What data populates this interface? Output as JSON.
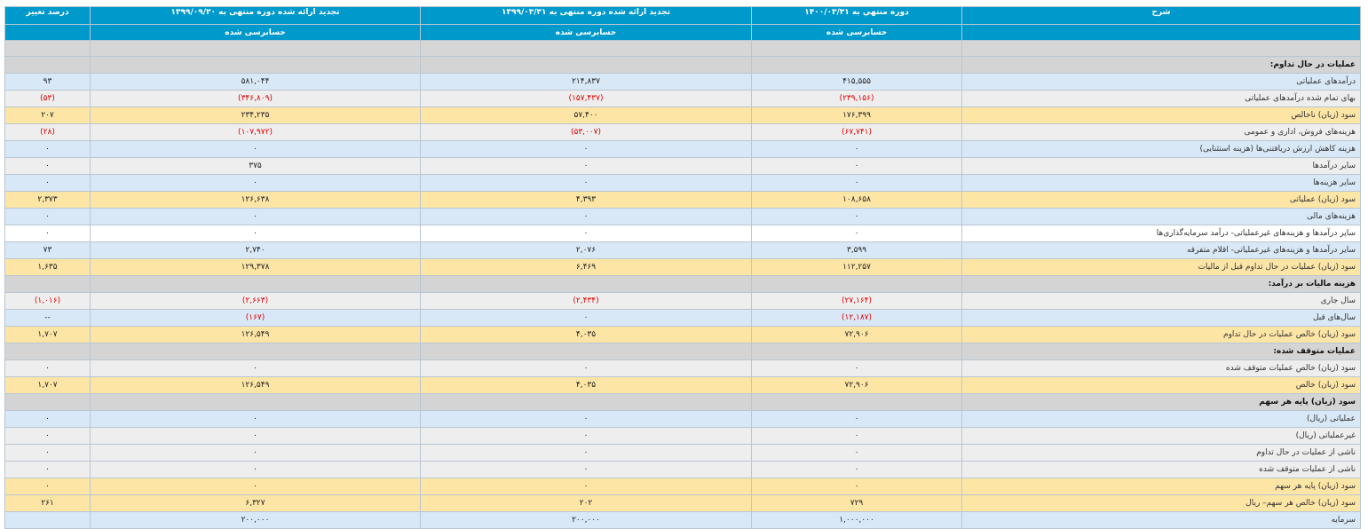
{
  "header": {
    "desc": "شرح",
    "p1": "دوره منتهي به ۱۴۰۰/۰۳/۳۱",
    "p2": "تجدید ارائه شده دوره منتهی به ۱۳۹۹/۰۳/۳۱",
    "p3": "تجدید ارائه شده دوره منتهی به ۱۳۹۹/۰۹/۳۰",
    "change": "درصد تغییر",
    "sub1": "حسابرسی شده",
    "sub2": "حسابرسی شده",
    "sub3": "حسابرسی شده"
  },
  "rows": [
    {
      "type": "section",
      "label": "عملیات در حال تداوم:"
    },
    {
      "type": "row",
      "style": "blue",
      "label": "درآمدهای عملیاتی",
      "c1": "۴۱۵,۵۵۵",
      "c2": "۲۱۴,۸۳۷",
      "c3": "۵۸۱,۰۴۴",
      "chg": "۹۳"
    },
    {
      "type": "row",
      "style": "grey",
      "label": "بهای تمام شده درآمدهای عملیاتی",
      "c1": "(۲۳۹,۱۵۶)",
      "c2": "(۱۵۷,۴۳۷)",
      "c3": "(۳۴۶,۸۰۹)",
      "chg": "(۵۳)"
    },
    {
      "type": "row",
      "style": "gold",
      "label": "سود (زیان) ناخالص",
      "c1": "۱۷۶,۳۹۹",
      "c2": "۵۷,۴۰۰",
      "c3": "۲۳۴,۲۳۵",
      "chg": "۲۰۷"
    },
    {
      "type": "row",
      "style": "grey",
      "label": "هزینه‌های فروش، اداری و عمومی",
      "c1": "(۶۷,۷۴۱)",
      "c2": "(۵۳,۰۰۷)",
      "c3": "(۱۰۷,۹۷۲)",
      "chg": "(۲۸)"
    },
    {
      "type": "row",
      "style": "blue",
      "label": "هزینه کاهش ارزش دریافتنی‌ها (هزینه استثنایی)",
      "c1": "۰",
      "c2": "۰",
      "c3": "۰",
      "chg": "۰"
    },
    {
      "type": "row",
      "style": "grey",
      "label": "سایر درآمدها",
      "c1": "۰",
      "c2": "۰",
      "c3": "۳۷۵",
      "chg": "۰"
    },
    {
      "type": "row",
      "style": "blue",
      "label": "سایر هزینه‌ها",
      "c1": "۰",
      "c2": "۰",
      "c3": "۰",
      "chg": "۰"
    },
    {
      "type": "row",
      "style": "gold",
      "label": "سود (زیان) عملیاتی",
      "c1": "۱۰۸,۶۵۸",
      "c2": "۴,۳۹۳",
      "c3": "۱۲۶,۶۳۸",
      "chg": "۲,۳۷۳"
    },
    {
      "type": "row",
      "style": "blue",
      "label": "هزینه‌های مالی",
      "c1": "۰",
      "c2": "۰",
      "c3": "۰",
      "chg": "۰"
    },
    {
      "type": "row",
      "style": "white",
      "label": "سایر درآمدها و هزینه‌های غیرعملیاتی- درآمد سرمایه‌گذاری‌ها",
      "c1": "۰",
      "c2": "۰",
      "c3": "۰",
      "chg": "۰"
    },
    {
      "type": "row",
      "style": "blue",
      "label": "سایر درآمدها و هزینه‌های غیرعملیاتی- اقلام متفرقه",
      "c1": "۳,۵۹۹",
      "c2": "۲,۰۷۶",
      "c3": "۲,۷۴۰",
      "chg": "۷۳"
    },
    {
      "type": "row",
      "style": "gold",
      "label": "سود (زیان) عملیات در حال تداوم قبل از مالیات",
      "c1": "۱۱۲,۲۵۷",
      "c2": "۶,۴۶۹",
      "c3": "۱۲۹,۳۷۸",
      "chg": "۱,۶۳۵"
    },
    {
      "type": "section",
      "label": "هزینه مالیات بر درآمد:"
    },
    {
      "type": "row",
      "style": "grey",
      "label": "سال جاری",
      "c1": "(۲۷,۱۶۴)",
      "c2": "(۲,۴۳۴)",
      "c3": "(۲,۶۶۳)",
      "chg": "(۱,۰۱۶)"
    },
    {
      "type": "row",
      "style": "blue",
      "label": "سال‌های قبل",
      "c1": "(۱۲,۱۸۷)",
      "c2": "۰",
      "c3": "(۱۶۷)",
      "chg": "--"
    },
    {
      "type": "row",
      "style": "gold",
      "label": "سود (زیان) خالص عملیات در حال تداوم",
      "c1": "۷۲,۹۰۶",
      "c2": "۴,۰۳۵",
      "c3": "۱۲۶,۵۴۹",
      "chg": "۱,۷۰۷"
    },
    {
      "type": "section",
      "label": "عملیات متوقف شده:"
    },
    {
      "type": "row",
      "style": "grey",
      "label": "سود (زیان) خالص عملیات متوقف شده",
      "c1": "۰",
      "c2": "۰",
      "c3": "۰",
      "chg": "۰"
    },
    {
      "type": "row",
      "style": "gold",
      "label": "سود (زیان) خالص",
      "c1": "۷۲,۹۰۶",
      "c2": "۴,۰۳۵",
      "c3": "۱۲۶,۵۴۹",
      "chg": "۱,۷۰۷"
    },
    {
      "type": "section",
      "label": "سود (زیان) پایه هر سهم"
    },
    {
      "type": "row",
      "style": "blue",
      "label": "عملیاتی (ریال)",
      "c1": "۰",
      "c2": "۰",
      "c3": "۰",
      "chg": "۰"
    },
    {
      "type": "row",
      "style": "grey",
      "label": "غیرعملیاتی (ریال)",
      "c1": "۰",
      "c2": "۰",
      "c3": "۰",
      "chg": "۰"
    },
    {
      "type": "row",
      "style": "grey",
      "label": "ناشی از عملیات در حال تداوم",
      "c1": "۰",
      "c2": "۰",
      "c3": "۰",
      "chg": "۰"
    },
    {
      "type": "row",
      "style": "grey",
      "label": "ناشی از عملیات متوقف شده",
      "c1": "۰",
      "c2": "۰",
      "c3": "۰",
      "chg": "۰"
    },
    {
      "type": "row",
      "style": "gold",
      "label": "سود (زیان) پایه هر سهم",
      "c1": "۰",
      "c2": "۰",
      "c3": "۰",
      "chg": "۰"
    },
    {
      "type": "row",
      "style": "gold",
      "label": "سود (زیان) خالص هر سهم– ریال",
      "c1": "۷۲۹",
      "c2": "۲۰۲",
      "c3": "۶,۳۲۷",
      "chg": "۲۶۱"
    },
    {
      "type": "row",
      "style": "blue",
      "label": "سرمایه",
      "c1": "۱,۰۰۰,۰۰۰",
      "c2": "۲۰۰,۰۰۰",
      "c3": "۲۰۰,۰۰۰",
      "chg": ""
    }
  ]
}
